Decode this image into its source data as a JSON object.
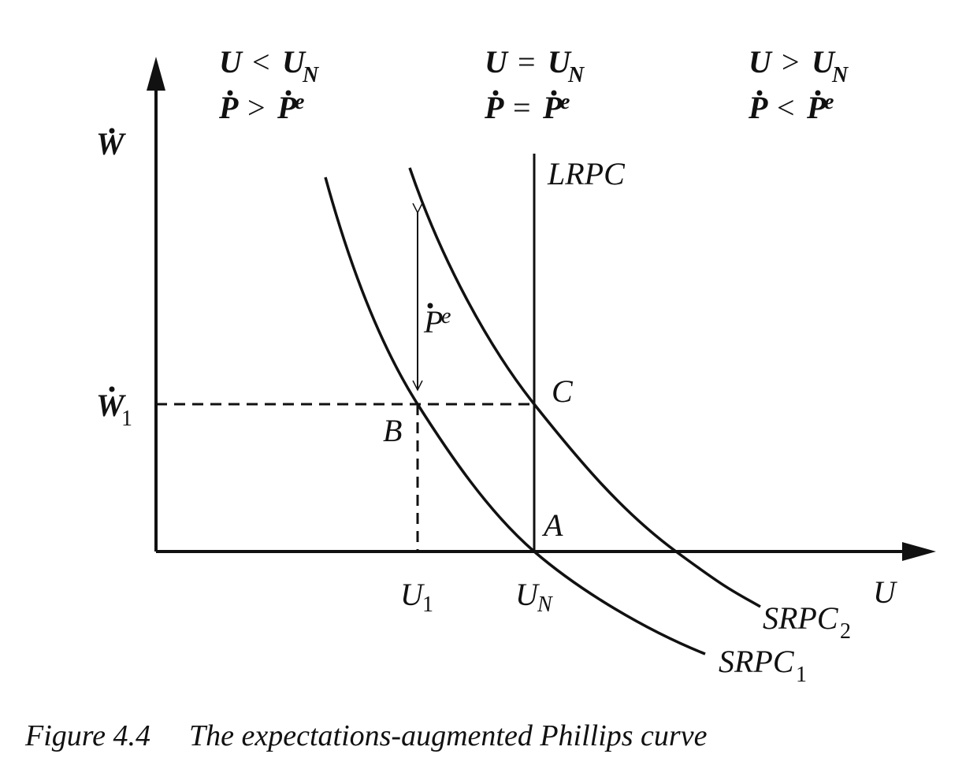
{
  "regions": [
    {
      "u_left": "U",
      "u_op": "<",
      "u_right": "U",
      "u_sub": "N",
      "p_left": "P",
      "p_op": ">",
      "p_right": "P",
      "p_sup": "e"
    },
    {
      "u_left": "U",
      "u_op": "=",
      "u_right": "U",
      "u_sub": "N",
      "p_left": "P",
      "p_op": "=",
      "p_right": "P",
      "p_sup": "e"
    },
    {
      "u_left": "U",
      "u_op": ">",
      "u_right": "U",
      "u_sub": "N",
      "p_left": "P",
      "p_op": "<",
      "p_right": "P",
      "p_sup": "e"
    }
  ],
  "y_axis": {
    "label": "W"
  },
  "x_axis": {
    "label": "U"
  },
  "y_mark": {
    "label": "W",
    "sub": "1"
  },
  "x_marks": [
    {
      "label": "U",
      "sub": "1"
    },
    {
      "label": "U",
      "sub": "N"
    }
  ],
  "points": {
    "a": "A",
    "b": "B",
    "c": "C"
  },
  "lrpc": "LRPC",
  "arrow_label": {
    "label": "P",
    "sup": "e"
  },
  "curves": [
    {
      "label": "SRPC",
      "sub": "1"
    },
    {
      "label": "SRPC",
      "sub": "2"
    }
  ],
  "caption": {
    "number": "Figure 4.4",
    "title": "The expectations-augmented Phillips curve"
  }
}
